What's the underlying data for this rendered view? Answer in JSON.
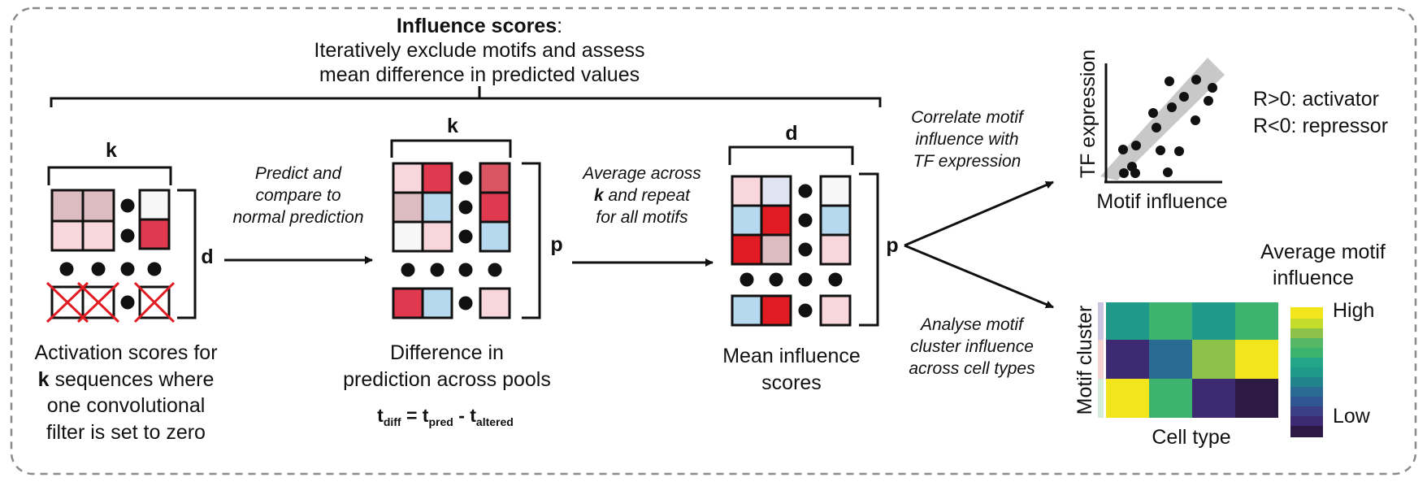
{
  "header": {
    "title": "Influence scores",
    "title_suffix": ":",
    "line1": "Iteratively exclude motifs and assess",
    "line2": "mean difference in predicted values"
  },
  "panel1": {
    "k_label": "k",
    "d_label": "d",
    "caption_line1": "Activation scores for",
    "caption_line2_bold": "k",
    "caption_line2_rest": " sequences where",
    "caption_line3": "one convolutional",
    "caption_line4": "filter is set to zero"
  },
  "arrow1": {
    "line1": "Predict and",
    "line2": "compare to",
    "line3": "normal prediction"
  },
  "panel2": {
    "k_label": "k",
    "p_label": "p",
    "caption_line1": "Difference in",
    "caption_line2": "prediction across pools",
    "formula": {
      "t1": "t",
      "sub1": "diff",
      "eq": " = t",
      "sub2": "pred",
      "minus": " - t",
      "sub3": "altered"
    }
  },
  "arrow2": {
    "line1": "Average across",
    "line2_bold": "k",
    "line2_rest": " and repeat",
    "line3": "for all motifs"
  },
  "panel3": {
    "d_label": "d",
    "p_label": "p",
    "caption_line1": "Mean influence",
    "caption_line2": "scores"
  },
  "branch_label": "p",
  "upper_branch": {
    "line1": "Correlate motif",
    "line2": "influence with",
    "line3": "TF expression"
  },
  "lower_branch": {
    "line1": "Analyse motif",
    "line2": "cluster influence",
    "line3": "across cell types"
  },
  "scatter": {
    "ylabel": "TF expression",
    "xlabel": "Motif influence",
    "note_line1": "R>0: activator",
    "note_line2": "R<0: repressor"
  },
  "heatmap": {
    "ylabel": "Motif cluster",
    "xlabel": "Cell type",
    "legend_title_line1": "Average motif",
    "legend_title_line2": "influence",
    "legend_high": "High",
    "legend_low": "Low"
  },
  "colors": {
    "red_strong": "#e11b22",
    "red_medium": "#e0394f",
    "red_muted": "#d95561",
    "pink_light": "#f9d6db",
    "mauve": "#dcbcc0",
    "blue_light": "#b7d9f0",
    "lavender": "#dfe3f2",
    "white_cell": "#f7f7f7",
    "band": "#c8c8c8",
    "viridis_yellow": "#f2e51b",
    "viridis_green": "#3eb370",
    "viridis_teal": "#1f9a8a",
    "viridis_blue": "#296b93",
    "viridis_purple": "#3e2a73",
    "viridis_dark": "#2c1a45",
    "viridis_lime": "#8cc24a"
  }
}
